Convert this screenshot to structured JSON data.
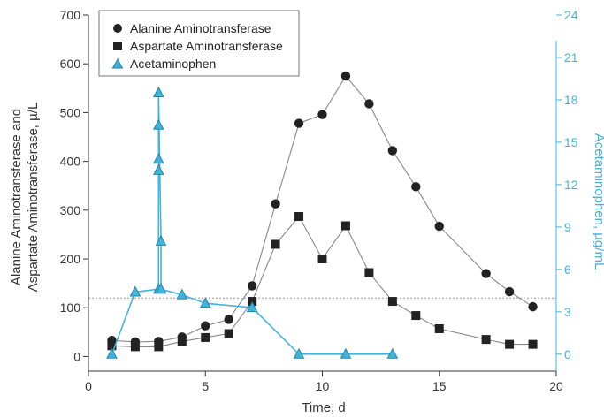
{
  "chart_data": {
    "type": "line",
    "xlabel": "Time, d",
    "ylabel_left_line1": "Alanine Aminotransferase and",
    "ylabel_left_line2": "Aspartate Aminotransferase, µ/L",
    "ylabel_right": "Acetaminophen, µg/mL",
    "xlim": [
      0,
      20
    ],
    "xticks": [
      0,
      5,
      10,
      15,
      20
    ],
    "ylim_left": [
      -30,
      700
    ],
    "yticks_left": [
      0,
      100,
      200,
      300,
      400,
      500,
      600,
      700
    ],
    "ylim_right": [
      -1.2,
      24
    ],
    "yticks_right": [
      0,
      3,
      6,
      9,
      12,
      15,
      18,
      21,
      24
    ],
    "reference_line_left_value": 120,
    "legend_position": "top-left",
    "colors": {
      "alt": "#222222",
      "ast": "#222222",
      "acetaminophen": "#45b3d9",
      "reference_line": "#999999"
    },
    "series": [
      {
        "name": "Alanine Aminotransferase",
        "axis": "left",
        "marker": "circle",
        "x": [
          1,
          2,
          3,
          4,
          5,
          6,
          7,
          8,
          9,
          10,
          11,
          12,
          13,
          14,
          15,
          17,
          18,
          19
        ],
        "y": [
          33,
          30,
          31,
          40,
          63,
          76,
          145,
          313,
          478,
          496,
          575,
          518,
          422,
          348,
          267,
          170,
          133,
          102
        ]
      },
      {
        "name": "Aspartate Aminotransferase",
        "axis": "left",
        "marker": "square",
        "x": [
          1,
          2,
          3,
          4,
          5,
          6,
          7,
          8,
          9,
          10,
          11,
          12,
          13,
          14,
          15,
          17,
          18,
          19
        ],
        "y": [
          22,
          20,
          20,
          31,
          39,
          47,
          113,
          230,
          287,
          200,
          268,
          172,
          113,
          84,
          57,
          35,
          25,
          25
        ]
      },
      {
        "name": "Acetaminophen",
        "axis": "right",
        "marker": "triangle",
        "x": [
          1,
          2,
          3,
          3,
          3,
          3,
          3,
          3.1,
          3.1,
          4,
          5,
          7,
          9,
          11,
          13
        ],
        "y": [
          0,
          4.4,
          4.6,
          13,
          13.8,
          16.2,
          18.5,
          8,
          4.6,
          4.2,
          3.6,
          3.3,
          0,
          0,
          0
        ]
      }
    ]
  }
}
